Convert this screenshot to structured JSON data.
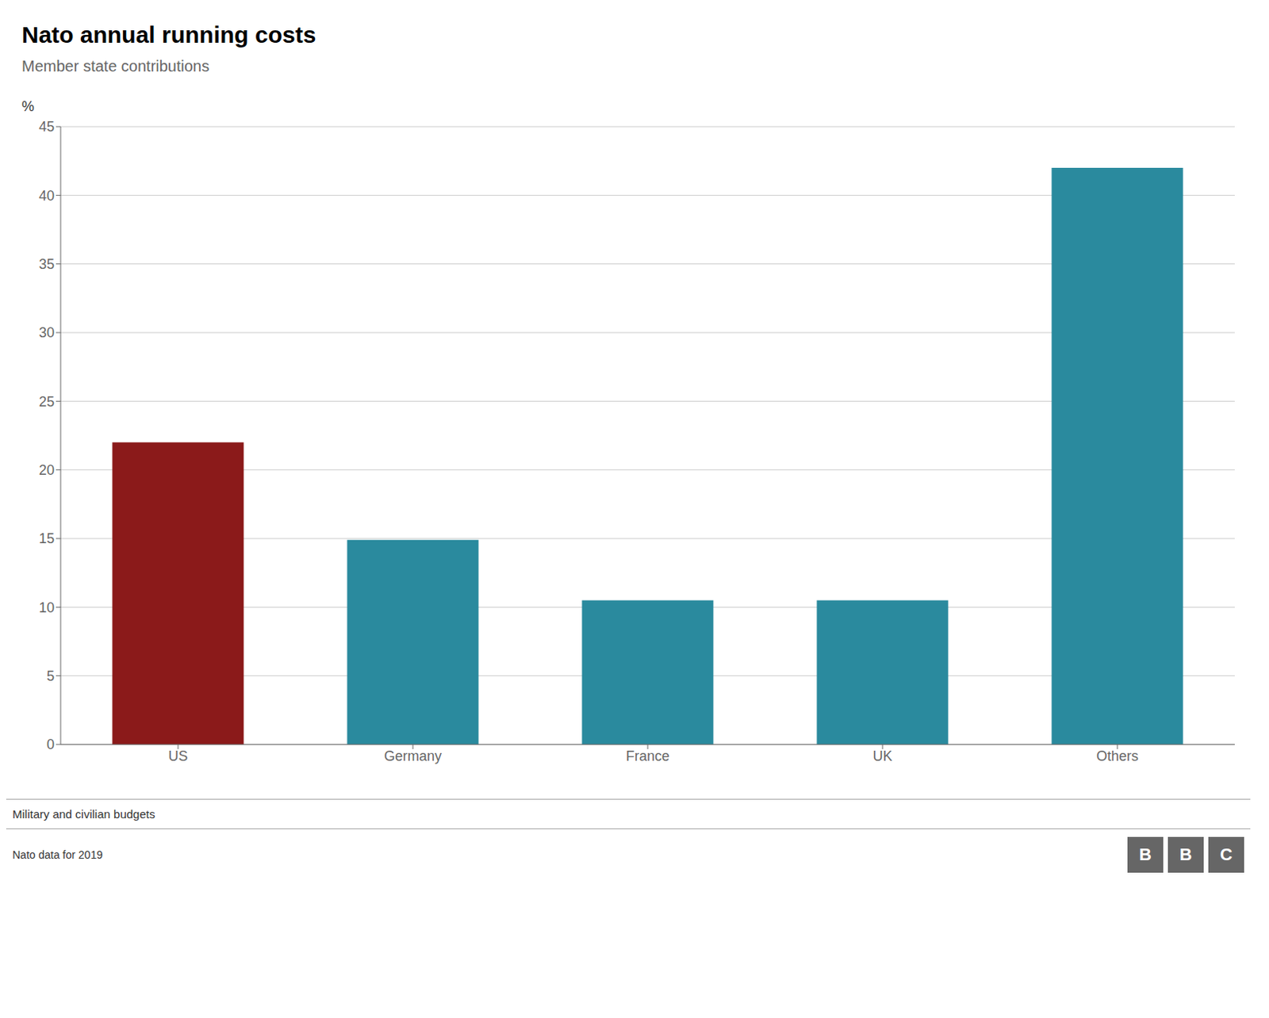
{
  "chart_data": {
    "type": "bar",
    "title": "Nato annual running costs",
    "subtitle": "Member state contributions",
    "ylabel": "%",
    "categories": [
      "US",
      "Germany",
      "France",
      "UK",
      "Others"
    ],
    "values": [
      22,
      14.9,
      10.5,
      10.5,
      42
    ],
    "colors": [
      "#8b1a1a",
      "#2a8a9e",
      "#2a8a9e",
      "#2a8a9e",
      "#2a8a9e"
    ],
    "ylim": [
      0,
      45
    ],
    "yticks": [
      0,
      5,
      10,
      15,
      20,
      25,
      30,
      35,
      40,
      45
    ],
    "grid": true,
    "annotations": [
      "Military and civilian budgets",
      "Nato data for 2019",
      "BBC"
    ]
  }
}
